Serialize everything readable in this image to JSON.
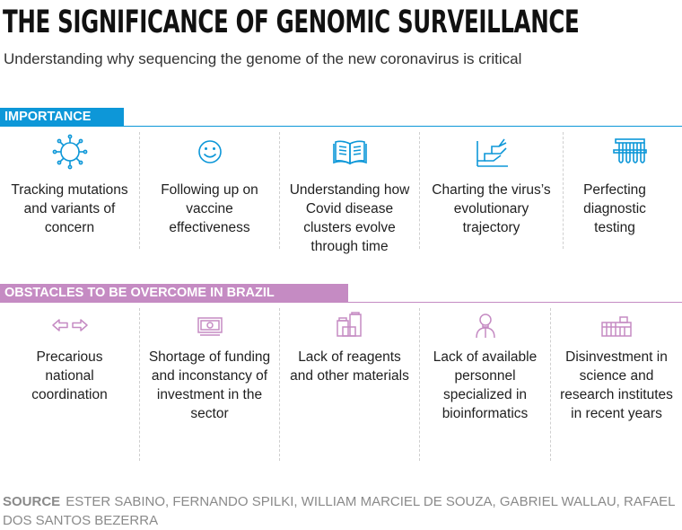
{
  "title": "THE SIGNIFICANCE OF GENOMIC SURVEILLANCE",
  "subtitle": "Understanding why sequencing the genome of the new coronavirus is critical",
  "colors": {
    "importance": "#0d97d8",
    "obstacles": "#c58bc3"
  },
  "importance": {
    "label": "IMPORTANCE",
    "items": [
      {
        "icon": "virus-icon",
        "text": "Tracking mutations and variants of concern"
      },
      {
        "icon": "smiley-face-icon",
        "text": "Following up on vaccine effectiveness"
      },
      {
        "icon": "open-book-icon",
        "text": "Understanding how Covid disease clusters evolve through time"
      },
      {
        "icon": "branching-tree-icon",
        "text": "Charting the virus’s evolutionary trajectory"
      },
      {
        "icon": "test-tubes-icon",
        "text": "Perfecting diagnostic testing"
      }
    ]
  },
  "obstacles": {
    "label": "OBSTACLES TO BE OVERCOME IN BRAZIL",
    "items": [
      {
        "icon": "opposite-arrows-icon",
        "text": "Precarious national coordination"
      },
      {
        "icon": "banknote-icon",
        "text": "Shortage of funding and inconstancy of investment in the sector"
      },
      {
        "icon": "lab-containers-icon",
        "text": "Lack of reagents and other materials"
      },
      {
        "icon": "person-icon",
        "text": "Lack of available personnel specialized in bioinformatics"
      },
      {
        "icon": "factory-building-icon",
        "text": "Disinvestment in science and research institutes in recent years"
      }
    ]
  },
  "source": {
    "label": "SOURCE",
    "text": "ESTER SABINO, FERNANDO SPILKI, WILLIAM MARCIEL DE SOUZA, GABRIEL WALLAU, RAFAEL DOS SANTOS BEZERRA"
  }
}
